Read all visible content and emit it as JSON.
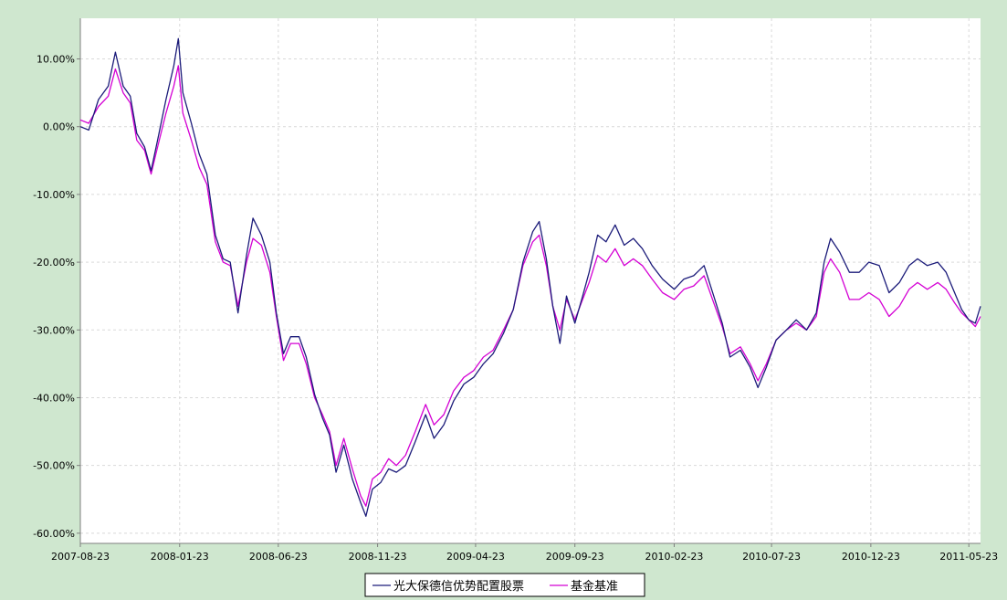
{
  "chart_data": {
    "type": "line",
    "title": "",
    "xlabel": "",
    "ylabel": "",
    "ylim": [
      -0.615,
      0.16
    ],
    "y_ticks": [
      0.1,
      0.0,
      -0.1,
      -0.2,
      -0.3,
      -0.4,
      -0.5,
      -0.6
    ],
    "y_tick_labels": [
      "10.00%",
      "0.00%",
      "-10.00%",
      "-20.00%",
      "-30.00%",
      "-40.00%",
      "-50.00%",
      "-60.00%"
    ],
    "x_start": "2007-08-23",
    "x_end": "2011-06-10",
    "x_ticks": [
      "2007-08-23",
      "2008-01-23",
      "2008-06-23",
      "2008-11-23",
      "2009-04-23",
      "2009-09-23",
      "2010-02-23",
      "2010-07-23",
      "2010-12-23",
      "2011-05-23"
    ],
    "grid": true,
    "legend_position": "bottom-center",
    "colors": {
      "background": "#cfe7cf",
      "plot": "#ffffff",
      "grid": "#d9d9d9",
      "fund": "#1c1c7a",
      "benchmark": "#d400d4"
    },
    "series": [
      {
        "name": "光大保德信优势配置股票",
        "color": "#1c1c7a",
        "points": [
          [
            "2007-08-23",
            0.0
          ],
          [
            "2007-09-05",
            -0.005
          ],
          [
            "2007-09-20",
            0.04
          ],
          [
            "2007-10-05",
            0.06
          ],
          [
            "2007-10-16",
            0.11
          ],
          [
            "2007-10-28",
            0.06
          ],
          [
            "2007-11-08",
            0.045
          ],
          [
            "2007-11-18",
            -0.01
          ],
          [
            "2007-11-30",
            -0.03
          ],
          [
            "2007-12-10",
            -0.065
          ],
          [
            "2007-12-20",
            -0.02
          ],
          [
            "2008-01-02",
            0.04
          ],
          [
            "2008-01-14",
            0.09
          ],
          [
            "2008-01-21",
            0.13
          ],
          [
            "2008-01-28",
            0.05
          ],
          [
            "2008-02-10",
            0.005
          ],
          [
            "2008-02-22",
            -0.04
          ],
          [
            "2008-03-05",
            -0.07
          ],
          [
            "2008-03-18",
            -0.16
          ],
          [
            "2008-03-30",
            -0.195
          ],
          [
            "2008-04-10",
            -0.2
          ],
          [
            "2008-04-22",
            -0.275
          ],
          [
            "2008-05-05",
            -0.19
          ],
          [
            "2008-05-15",
            -0.135
          ],
          [
            "2008-05-28",
            -0.16
          ],
          [
            "2008-06-10",
            -0.2
          ],
          [
            "2008-06-20",
            -0.275
          ],
          [
            "2008-07-01",
            -0.335
          ],
          [
            "2008-07-12",
            -0.31
          ],
          [
            "2008-07-25",
            -0.31
          ],
          [
            "2008-08-05",
            -0.34
          ],
          [
            "2008-08-18",
            -0.395
          ],
          [
            "2008-08-30",
            -0.43
          ],
          [
            "2008-09-10",
            -0.455
          ],
          [
            "2008-09-20",
            -0.51
          ],
          [
            "2008-10-02",
            -0.47
          ],
          [
            "2008-10-15",
            -0.52
          ],
          [
            "2008-10-28",
            -0.555
          ],
          [
            "2008-11-05",
            -0.575
          ],
          [
            "2008-11-15",
            -0.535
          ],
          [
            "2008-11-28",
            -0.525
          ],
          [
            "2008-12-10",
            -0.505
          ],
          [
            "2008-12-22",
            -0.51
          ],
          [
            "2009-01-05",
            -0.5
          ],
          [
            "2009-01-20",
            -0.465
          ],
          [
            "2009-02-05",
            -0.425
          ],
          [
            "2009-02-18",
            -0.46
          ],
          [
            "2009-03-05",
            -0.44
          ],
          [
            "2009-03-20",
            -0.405
          ],
          [
            "2009-04-05",
            -0.38
          ],
          [
            "2009-04-20",
            -0.37
          ],
          [
            "2009-05-05",
            -0.35
          ],
          [
            "2009-05-20",
            -0.335
          ],
          [
            "2009-06-05",
            -0.305
          ],
          [
            "2009-06-20",
            -0.27
          ],
          [
            "2009-07-05",
            -0.2
          ],
          [
            "2009-07-20",
            -0.155
          ],
          [
            "2009-07-30",
            -0.14
          ],
          [
            "2009-08-10",
            -0.195
          ],
          [
            "2009-08-20",
            -0.265
          ],
          [
            "2009-08-31",
            -0.32
          ],
          [
            "2009-09-10",
            -0.25
          ],
          [
            "2009-09-23",
            -0.29
          ],
          [
            "2009-10-05",
            -0.25
          ],
          [
            "2009-10-15",
            -0.215
          ],
          [
            "2009-10-28",
            -0.16
          ],
          [
            "2009-11-10",
            -0.17
          ],
          [
            "2009-11-24",
            -0.145
          ],
          [
            "2009-12-08",
            -0.175
          ],
          [
            "2009-12-22",
            -0.165
          ],
          [
            "2010-01-05",
            -0.18
          ],
          [
            "2010-01-20",
            -0.205
          ],
          [
            "2010-02-05",
            -0.225
          ],
          [
            "2010-02-23",
            -0.24
          ],
          [
            "2010-03-10",
            -0.225
          ],
          [
            "2010-03-25",
            -0.22
          ],
          [
            "2010-04-10",
            -0.205
          ],
          [
            "2010-04-25",
            -0.25
          ],
          [
            "2010-05-08",
            -0.29
          ],
          [
            "2010-05-20",
            -0.34
          ],
          [
            "2010-06-05",
            -0.33
          ],
          [
            "2010-06-20",
            -0.355
          ],
          [
            "2010-07-02",
            -0.385
          ],
          [
            "2010-07-15",
            -0.355
          ],
          [
            "2010-07-30",
            -0.315
          ],
          [
            "2010-08-15",
            -0.3
          ],
          [
            "2010-08-30",
            -0.285
          ],
          [
            "2010-09-15",
            -0.3
          ],
          [
            "2010-09-30",
            -0.275
          ],
          [
            "2010-10-12",
            -0.2
          ],
          [
            "2010-10-22",
            -0.165
          ],
          [
            "2010-11-05",
            -0.185
          ],
          [
            "2010-11-20",
            -0.215
          ],
          [
            "2010-12-05",
            -0.215
          ],
          [
            "2010-12-20",
            -0.2
          ],
          [
            "2011-01-05",
            -0.205
          ],
          [
            "2011-01-20",
            -0.245
          ],
          [
            "2011-02-05",
            -0.23
          ],
          [
            "2011-02-20",
            -0.205
          ],
          [
            "2011-03-05",
            -0.195
          ],
          [
            "2011-03-20",
            -0.205
          ],
          [
            "2011-04-05",
            -0.2
          ],
          [
            "2011-04-18",
            -0.215
          ],
          [
            "2011-05-01",
            -0.245
          ],
          [
            "2011-05-12",
            -0.27
          ],
          [
            "2011-05-23",
            -0.285
          ],
          [
            "2011-06-02",
            -0.29
          ],
          [
            "2011-06-10",
            -0.265
          ]
        ]
      },
      {
        "name": "基金基准",
        "color": "#d400d4",
        "points": [
          [
            "2007-08-23",
            0.01
          ],
          [
            "2007-09-05",
            0.005
          ],
          [
            "2007-09-20",
            0.03
          ],
          [
            "2007-10-05",
            0.045
          ],
          [
            "2007-10-16",
            0.085
          ],
          [
            "2007-10-28",
            0.05
          ],
          [
            "2007-11-08",
            0.035
          ],
          [
            "2007-11-18",
            -0.02
          ],
          [
            "2007-11-30",
            -0.035
          ],
          [
            "2007-12-10",
            -0.07
          ],
          [
            "2007-12-20",
            -0.03
          ],
          [
            "2008-01-02",
            0.02
          ],
          [
            "2008-01-14",
            0.06
          ],
          [
            "2008-01-21",
            0.09
          ],
          [
            "2008-01-28",
            0.02
          ],
          [
            "2008-02-10",
            -0.02
          ],
          [
            "2008-02-22",
            -0.06
          ],
          [
            "2008-03-05",
            -0.085
          ],
          [
            "2008-03-18",
            -0.17
          ],
          [
            "2008-03-30",
            -0.2
          ],
          [
            "2008-04-10",
            -0.205
          ],
          [
            "2008-04-22",
            -0.265
          ],
          [
            "2008-05-05",
            -0.2
          ],
          [
            "2008-05-15",
            -0.165
          ],
          [
            "2008-05-28",
            -0.175
          ],
          [
            "2008-06-10",
            -0.215
          ],
          [
            "2008-06-20",
            -0.28
          ],
          [
            "2008-07-01",
            -0.345
          ],
          [
            "2008-07-12",
            -0.32
          ],
          [
            "2008-07-25",
            -0.32
          ],
          [
            "2008-08-05",
            -0.35
          ],
          [
            "2008-08-18",
            -0.4
          ],
          [
            "2008-08-30",
            -0.425
          ],
          [
            "2008-09-10",
            -0.45
          ],
          [
            "2008-09-20",
            -0.5
          ],
          [
            "2008-10-02",
            -0.46
          ],
          [
            "2008-10-15",
            -0.505
          ],
          [
            "2008-10-28",
            -0.545
          ],
          [
            "2008-11-05",
            -0.56
          ],
          [
            "2008-11-15",
            -0.52
          ],
          [
            "2008-11-28",
            -0.51
          ],
          [
            "2008-12-10",
            -0.49
          ],
          [
            "2008-12-22",
            -0.5
          ],
          [
            "2009-01-05",
            -0.485
          ],
          [
            "2009-01-20",
            -0.45
          ],
          [
            "2009-02-05",
            -0.41
          ],
          [
            "2009-02-18",
            -0.44
          ],
          [
            "2009-03-05",
            -0.425
          ],
          [
            "2009-03-20",
            -0.39
          ],
          [
            "2009-04-05",
            -0.37
          ],
          [
            "2009-04-20",
            -0.36
          ],
          [
            "2009-05-05",
            -0.34
          ],
          [
            "2009-05-20",
            -0.33
          ],
          [
            "2009-06-05",
            -0.3
          ],
          [
            "2009-06-20",
            -0.27
          ],
          [
            "2009-07-05",
            -0.205
          ],
          [
            "2009-07-20",
            -0.17
          ],
          [
            "2009-07-30",
            -0.16
          ],
          [
            "2009-08-10",
            -0.205
          ],
          [
            "2009-08-20",
            -0.265
          ],
          [
            "2009-08-31",
            -0.3
          ],
          [
            "2009-09-10",
            -0.255
          ],
          [
            "2009-09-23",
            -0.285
          ],
          [
            "2009-10-05",
            -0.255
          ],
          [
            "2009-10-15",
            -0.23
          ],
          [
            "2009-10-28",
            -0.19
          ],
          [
            "2009-11-10",
            -0.2
          ],
          [
            "2009-11-24",
            -0.18
          ],
          [
            "2009-12-08",
            -0.205
          ],
          [
            "2009-12-22",
            -0.195
          ],
          [
            "2010-01-05",
            -0.205
          ],
          [
            "2010-01-20",
            -0.225
          ],
          [
            "2010-02-05",
            -0.245
          ],
          [
            "2010-02-23",
            -0.255
          ],
          [
            "2010-03-10",
            -0.24
          ],
          [
            "2010-03-25",
            -0.235
          ],
          [
            "2010-04-10",
            -0.22
          ],
          [
            "2010-04-25",
            -0.26
          ],
          [
            "2010-05-08",
            -0.295
          ],
          [
            "2010-05-20",
            -0.335
          ],
          [
            "2010-06-05",
            -0.325
          ],
          [
            "2010-06-20",
            -0.35
          ],
          [
            "2010-07-02",
            -0.375
          ],
          [
            "2010-07-15",
            -0.35
          ],
          [
            "2010-07-30",
            -0.315
          ],
          [
            "2010-08-15",
            -0.3
          ],
          [
            "2010-08-30",
            -0.29
          ],
          [
            "2010-09-15",
            -0.3
          ],
          [
            "2010-09-30",
            -0.28
          ],
          [
            "2010-10-12",
            -0.215
          ],
          [
            "2010-10-22",
            -0.195
          ],
          [
            "2010-11-05",
            -0.215
          ],
          [
            "2010-11-20",
            -0.255
          ],
          [
            "2010-12-05",
            -0.255
          ],
          [
            "2010-12-20",
            -0.245
          ],
          [
            "2011-01-05",
            -0.255
          ],
          [
            "2011-01-20",
            -0.28
          ],
          [
            "2011-02-05",
            -0.265
          ],
          [
            "2011-02-20",
            -0.24
          ],
          [
            "2011-03-05",
            -0.23
          ],
          [
            "2011-03-20",
            -0.24
          ],
          [
            "2011-04-05",
            -0.23
          ],
          [
            "2011-04-18",
            -0.24
          ],
          [
            "2011-05-01",
            -0.26
          ],
          [
            "2011-05-12",
            -0.275
          ],
          [
            "2011-05-23",
            -0.285
          ],
          [
            "2011-06-02",
            -0.295
          ],
          [
            "2011-06-10",
            -0.28
          ]
        ]
      }
    ]
  }
}
